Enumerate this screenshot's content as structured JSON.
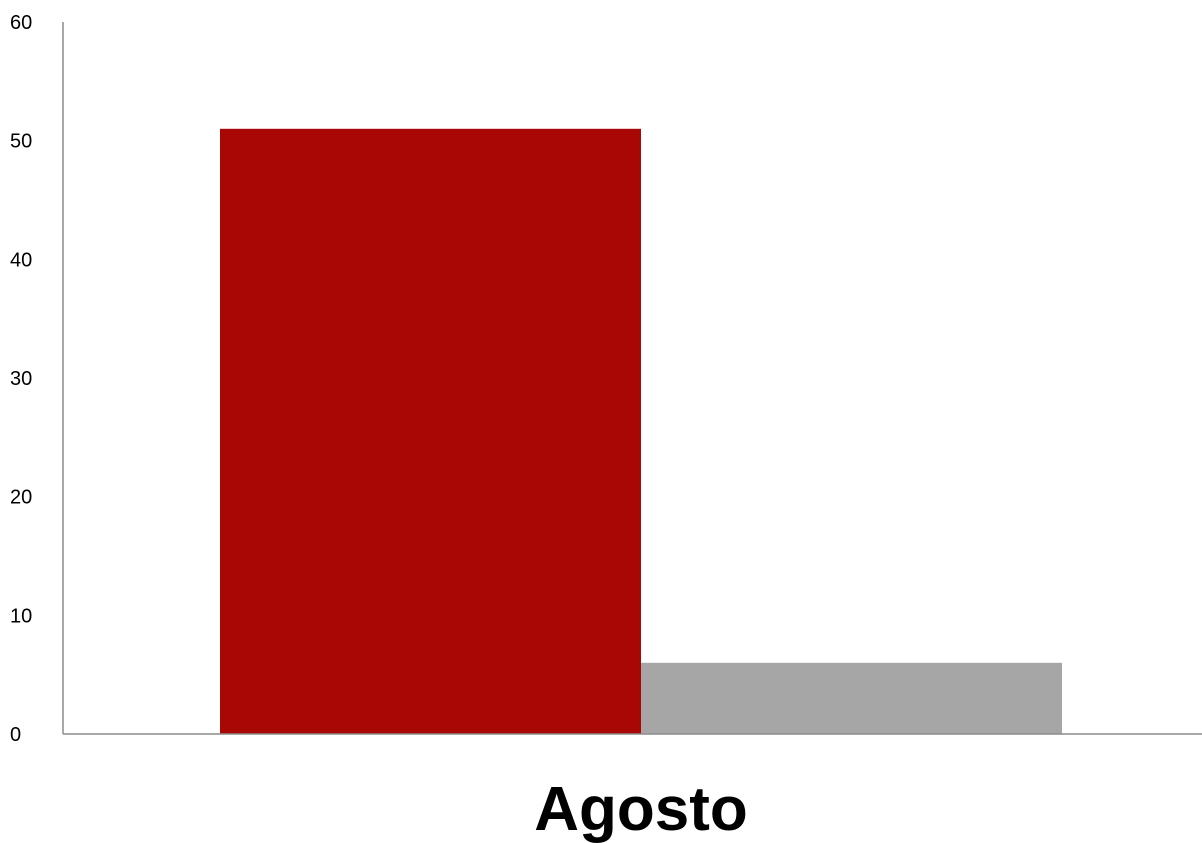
{
  "chart_data": {
    "type": "bar",
    "categories": [
      "Agosto"
    ],
    "series": [
      {
        "values": [
          51
        ],
        "color": "#A80705"
      },
      {
        "values": [
          6
        ],
        "color": "#A6A6A6"
      }
    ],
    "ylim": [
      0,
      60
    ],
    "yticks": [
      0,
      10,
      20,
      30,
      40,
      50,
      60
    ],
    "grid": false,
    "legend": "none",
    "title": "",
    "xlabel": "",
    "ylabel": ""
  }
}
